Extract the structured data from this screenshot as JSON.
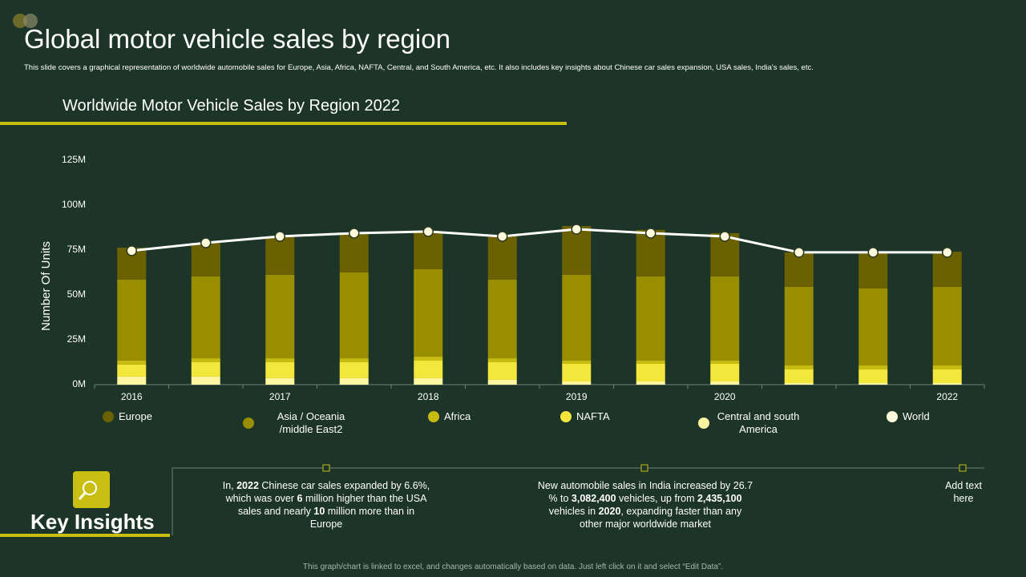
{
  "header": {
    "title": "Global motor vehicle sales by region",
    "subtitle": "This slide covers a graphical representation of worldwide automobile sales for Europe, Asia, Africa, NAFTA, Central, and South America, etc. It also includes key insights about Chinese  car sales expansion, USA sales, India's  sales, etc."
  },
  "chart_data": {
    "type": "bar",
    "stacked": true,
    "title": "Worldwide Motor Vehicle Sales by Region 2022",
    "y_label": "Number Of Units",
    "categories": [
      "2016",
      null,
      "2017",
      null,
      "2018",
      null,
      "2019",
      null,
      "2020",
      null,
      null,
      "2022"
    ],
    "ylim": [
      0,
      125
    ],
    "yticks": [
      {
        "value": 0,
        "label": "0M"
      },
      {
        "value": 25,
        "label": "25M"
      },
      {
        "value": 50,
        "label": "50M"
      },
      {
        "value": 75,
        "label": "75M"
      },
      {
        "value": 100,
        "label": "100M"
      },
      {
        "value": 125,
        "label": "125M"
      }
    ],
    "series": [
      {
        "name": "Europe",
        "color": "#6b6100",
        "values": [
          17.8,
          18.7,
          21.4,
          21.9,
          21.0,
          24.1,
          27.2,
          25.9,
          24.1,
          19.2,
          20.1,
          19.6
        ]
      },
      {
        "name": "Asia / Oceania /middle East2",
        "color": "#988e00",
        "values": [
          45.1,
          45.6,
          46.5,
          47.8,
          48.7,
          43.8,
          47.8,
          46.9,
          46.9,
          43.8,
          42.9,
          43.8
        ]
      },
      {
        "name": "Africa",
        "color": "#c8bc12",
        "values": [
          2.2,
          2.2,
          2.2,
          2.2,
          2.2,
          2.2,
          1.8,
          1.8,
          1.8,
          2.2,
          2.2,
          2.2
        ]
      },
      {
        "name": "NAFTA",
        "color": "#f4e73c",
        "values": [
          6.7,
          8.0,
          8.9,
          8.9,
          9.8,
          9.8,
          9.8,
          9.8,
          9.8,
          7.6,
          7.6,
          7.6
        ]
      },
      {
        "name": "Central and south America",
        "color": "#fff4a0",
        "values": [
          4.5,
          4.5,
          3.6,
          3.6,
          3.6,
          2.7,
          1.8,
          1.8,
          1.8,
          0.9,
          0.9,
          0.9
        ]
      },
      {
        "name": "World",
        "type": "line",
        "color": "#ffffff",
        "marker_color": "#fffbdc",
        "values": [
          74.6,
          79.0,
          82.6,
          84.4,
          85.3,
          82.6,
          86.6,
          84.4,
          82.6,
          73.7,
          73.7,
          73.7
        ]
      }
    ]
  },
  "insights": {
    "title": "Key Insights",
    "items": [
      {
        "runs": [
          {
            "text": "In, "
          },
          {
            "text": "2022",
            "bold": true
          },
          {
            "text": " Chinese  car sales expanded by 6.6%, which was over  "
          },
          {
            "text": "6",
            "bold": true
          },
          {
            "text": " million higher than the USA sales and nearly "
          },
          {
            "text": "10",
            "bold": true
          },
          {
            "text": " million more than in Europe"
          }
        ]
      },
      {
        "runs": [
          {
            "text": "New automobile  sales in India increased by 26.7 % to "
          },
          {
            "text": "3,082,400",
            "bold": true
          },
          {
            "text": " vehicles,  up from "
          },
          {
            "text": "2,435,100",
            "bold": true
          },
          {
            "text": " vehicles  in "
          },
          {
            "text": "2020",
            "bold": true
          },
          {
            "text": ",  expanding faster than any other major worldwide  market"
          }
        ]
      },
      {
        "runs": [
          {
            "text": "Add text here"
          }
        ]
      }
    ]
  },
  "footer": "This graph/chart is linked to excel, and changes automatically based on data. Just left click on it and select “Edit Data”."
}
